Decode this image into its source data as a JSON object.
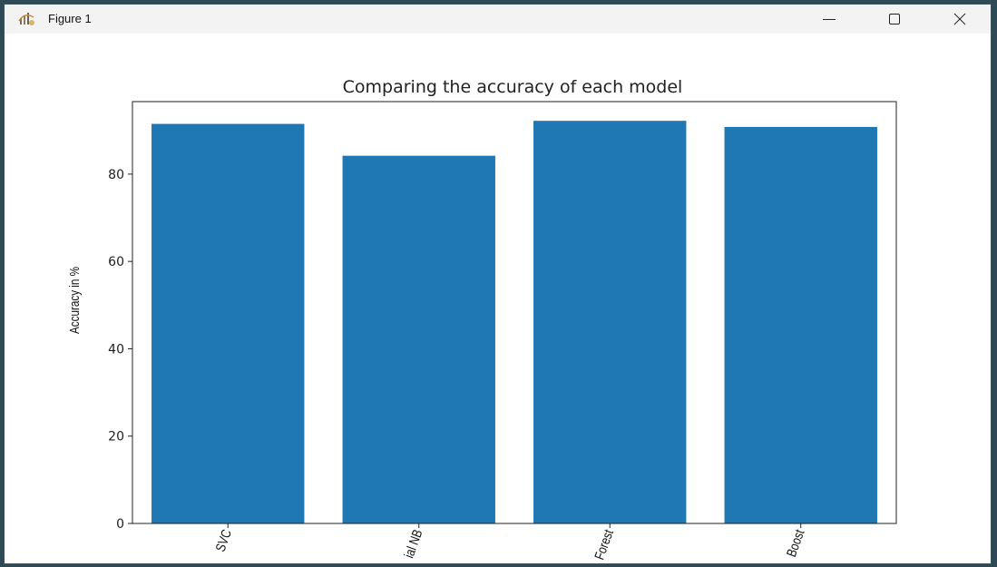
{
  "window": {
    "title": "Figure 1",
    "icon": "matplotlib-figure-icon",
    "controls": {
      "minimize": "minimize-icon",
      "maximize": "maximize-icon",
      "close": "close-icon"
    }
  },
  "chart_data": {
    "type": "bar",
    "title": "Comparing the accuracy of each model",
    "xlabel": "",
    "ylabel": "Accuracy in %",
    "categories": [
      "SVC",
      "ial NB",
      "Forest",
      "Boost"
    ],
    "values": [
      91.5,
      84.2,
      92.2,
      90.8
    ],
    "ylim": [
      0,
      96.6
    ],
    "yticks": [
      0,
      20,
      40,
      60,
      80
    ],
    "bar_color": "#1f77b4",
    "grid": false,
    "legend": "none",
    "xtick_rotation": 70
  }
}
